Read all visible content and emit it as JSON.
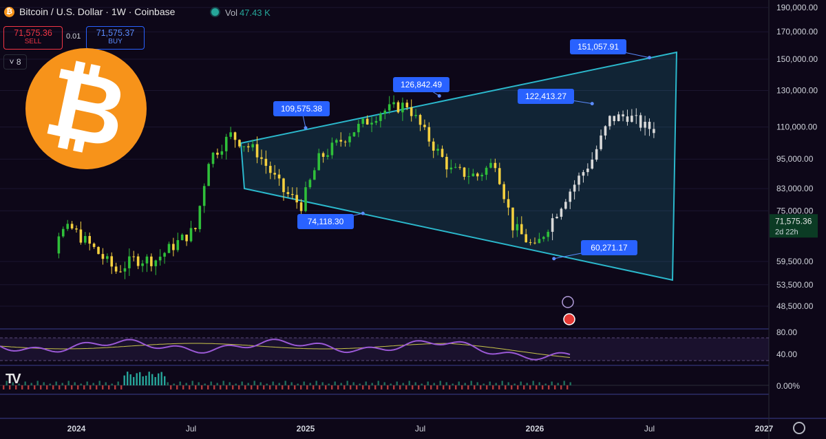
{
  "header": {
    "title": "Bitcoin / U.S. Dollar · 1W · Coinbase",
    "vol_label": "Vol",
    "vol_value": "47.43 K",
    "sell_price": "71,575.36",
    "sell_label": "SELL",
    "spread": "0.01",
    "buy_price": "71,575.37",
    "buy_label": "BUY",
    "indicator_count": "8"
  },
  "colors": {
    "background": "#0d0718",
    "up": "#2fbf3a",
    "down": "#f4d03f",
    "projection": "#d9d9d9",
    "wedge": "#2bb8cc",
    "label": "#2962ff",
    "rsi": "#9b59d6",
    "rsi_ma": "#c9c64a"
  },
  "icons": [
    "bitcoin-logo-icon",
    "lightning-icon",
    "us-flag-icon",
    "tradingview-logo-icon",
    "gear-icon"
  ],
  "chart_data": {
    "type": "candlestick",
    "price_axis": {
      "ticks": [
        "190,000.00",
        "170,000.00",
        "150,000.00",
        "130,000.00",
        "110,000.00",
        "95,000.00",
        "83,000.00",
        "75,000.00",
        "59,500.00",
        "53,500.00",
        "48,500.00"
      ],
      "last_price": "71,575.36",
      "countdown": "2d 22h",
      "scale": "log"
    },
    "time_axis": {
      "ticks": [
        "2024",
        "Jul",
        "2025",
        "Jul",
        "2026",
        "Jul",
        "2027"
      ]
    },
    "annotations": [
      {
        "text": "151,057.91",
        "value": 151057.91,
        "date": "2026-07"
      },
      {
        "text": "126,842.49",
        "value": 126842.49,
        "date": "2025-08"
      },
      {
        "text": "122,413.27",
        "value": 122413.27,
        "date": "2026-04"
      },
      {
        "text": "109,575.38",
        "value": 109575.38,
        "date": "2025-01"
      },
      {
        "text": "74,118.30",
        "value": 74118.3,
        "date": "2025-04"
      },
      {
        "text": "60,271.17",
        "value": 60271.17,
        "date": "2026-02"
      }
    ],
    "rsi": {
      "ticks": [
        "80.00",
        "40.00"
      ],
      "upper": 70,
      "lower": 30
    },
    "momentum": {
      "ticks": [
        "0.00%"
      ]
    }
  }
}
